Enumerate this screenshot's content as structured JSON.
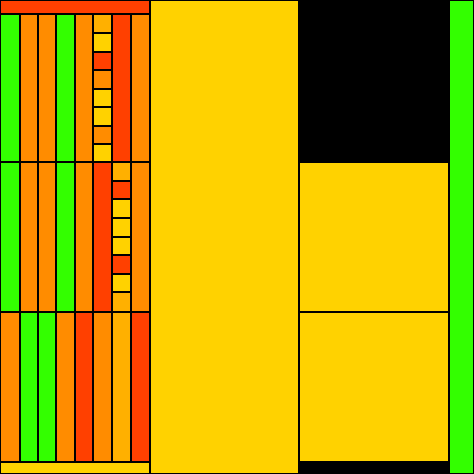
{
  "palette": {
    "red": "#FF4000",
    "orange": "#FF8C00",
    "amber": "#FFB000",
    "yellow": "#FFD200",
    "green": "#33FF00",
    "black": "#000000"
  }
}
